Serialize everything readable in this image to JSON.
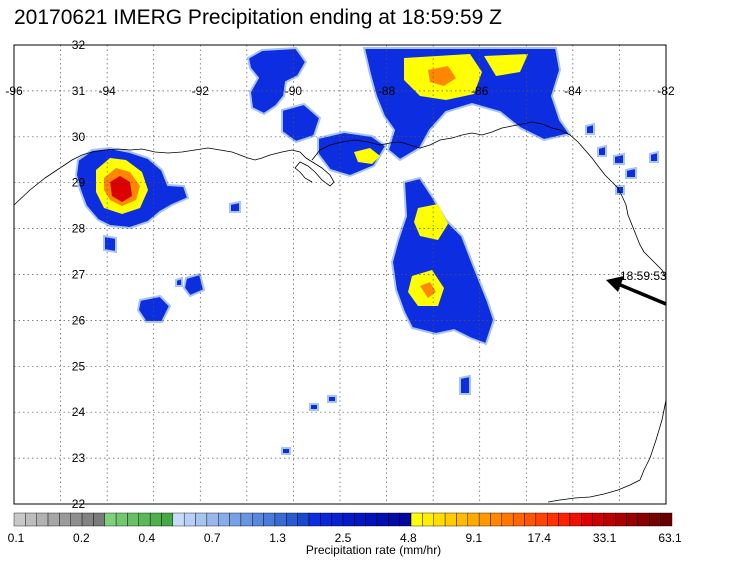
{
  "title": "20170621 IMERG Precipitation ending at 18:59:59 Z",
  "map": {
    "lon_range": [
      -96,
      -82
    ],
    "lat_range": [
      22,
      32
    ],
    "lon_labels": [
      "-96",
      "-94",
      "-92",
      "-90",
      "-88",
      "-86",
      "-84",
      "-82"
    ],
    "lat_labels": [
      "32",
      "31",
      "30",
      "29",
      "28",
      "27",
      "26",
      "25",
      "24",
      "23",
      "22"
    ],
    "gridlines": true
  },
  "track_label": "18:59:53",
  "colorbar": {
    "title": "Precipitation rate (mm/hr)",
    "tick_labels": [
      "0.1",
      "0.2",
      "0.4",
      "0.7",
      "1.3",
      "2.5",
      "4.8",
      "9.1",
      "17.4",
      "33.1",
      "63.1"
    ],
    "colors": [
      "#c8c8c8",
      "#bdbdbd",
      "#b2b2b2",
      "#a6a6a6",
      "#9a9a9a",
      "#8e8e8e",
      "#828282",
      "#7a7a7a",
      "#7ed07e",
      "#72c872",
      "#66c066",
      "#5ab85a",
      "#4eb04e",
      "#46a846",
      "#c8dcfa",
      "#b8d0f5",
      "#a8c4f0",
      "#98b8ec",
      "#88ace8",
      "#78a0e4",
      "#6894e0",
      "#5888dc",
      "#4a7bd8",
      "#3a6ad4",
      "#2a5ad0",
      "#1a48cc",
      "#0c2ee0",
      "#0a26d8",
      "#0820d0",
      "#061ac8",
      "#0416c0",
      "#0312b8",
      "#020eb0",
      "#020aa8",
      "#0206a0",
      "#ffff00",
      "#ffee00",
      "#ffdd00",
      "#ffcc00",
      "#ffbb00",
      "#ffaa00",
      "#ff9900",
      "#ff8800",
      "#ff7700",
      "#ff6600",
      "#ff5500",
      "#ff4400",
      "#ff3300",
      "#ff2200",
      "#ee1100",
      "#dd0000",
      "#cc0000",
      "#bb0000",
      "#aa0000",
      "#990000",
      "#880000",
      "#770000",
      "#660000"
    ]
  },
  "precip_colors": {
    "outline": "#a8c4f0",
    "light": "#3a6ad4",
    "moderate": "#0c2ee0",
    "heavy": "#ffff00",
    "orange": "#ff8800",
    "red": "#dd0000"
  }
}
